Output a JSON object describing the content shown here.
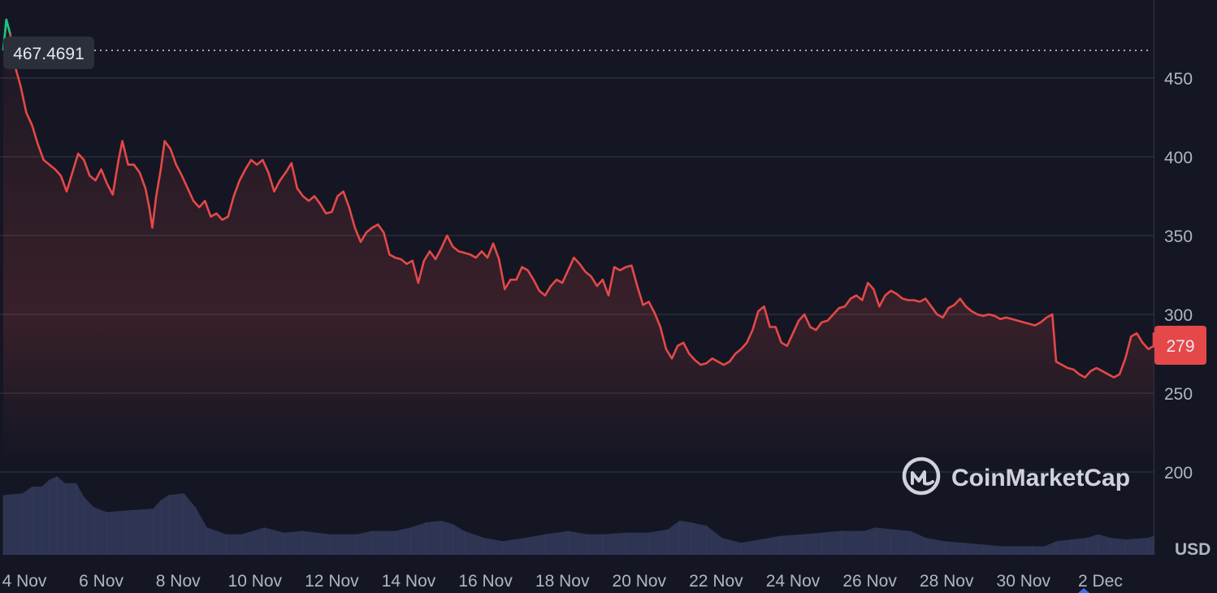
{
  "chart_data": {
    "type": "area",
    "currency": "USD",
    "brand": "CoinMarketCap",
    "open_price_label": "467.4691",
    "open_price": 467.4691,
    "last_price_label": "279",
    "last_price": 279,
    "ylim": [
      160,
      492
    ],
    "y_ticks": [
      200,
      250,
      300,
      350,
      400,
      450
    ],
    "x_ticks": [
      "4 Nov",
      "6 Nov",
      "8 Nov",
      "10 Nov",
      "12 Nov",
      "14 Nov",
      "16 Nov",
      "18 Nov",
      "20 Nov",
      "22 Nov",
      "24 Nov",
      "26 Nov",
      "28 Nov",
      "30 Nov",
      "2 Dec"
    ],
    "x_day_range": [
      0,
      30.5
    ],
    "grid": true,
    "series": [
      {
        "values": [
          [
            0.0,
            467.5
          ],
          [
            0.08,
            487
          ],
          [
            0.18,
            478
          ],
          [
            0.3,
            458
          ],
          [
            0.45,
            445
          ],
          [
            0.6,
            428
          ],
          [
            0.75,
            420
          ],
          [
            0.9,
            408
          ],
          [
            1.05,
            398
          ],
          [
            1.2,
            395
          ],
          [
            1.35,
            392
          ],
          [
            1.5,
            388
          ],
          [
            1.65,
            378
          ],
          [
            1.8,
            390
          ],
          [
            1.95,
            402
          ],
          [
            2.1,
            398
          ],
          [
            2.25,
            388
          ],
          [
            2.4,
            385
          ],
          [
            2.55,
            392
          ],
          [
            2.7,
            383
          ],
          [
            2.85,
            376
          ],
          [
            3.0,
            398
          ],
          [
            3.1,
            410
          ],
          [
            3.25,
            395
          ],
          [
            3.4,
            395
          ],
          [
            3.55,
            390
          ],
          [
            3.7,
            380
          ],
          [
            3.8,
            368
          ],
          [
            3.88,
            355
          ],
          [
            3.98,
            375
          ],
          [
            4.1,
            392
          ],
          [
            4.2,
            410
          ],
          [
            4.35,
            405
          ],
          [
            4.5,
            395
          ],
          [
            4.65,
            388
          ],
          [
            4.8,
            380
          ],
          [
            4.95,
            372
          ],
          [
            5.1,
            368
          ],
          [
            5.25,
            372
          ],
          [
            5.4,
            362
          ],
          [
            5.55,
            364
          ],
          [
            5.7,
            360
          ],
          [
            5.85,
            362
          ],
          [
            6.0,
            375
          ],
          [
            6.15,
            385
          ],
          [
            6.3,
            392
          ],
          [
            6.45,
            398
          ],
          [
            6.6,
            395
          ],
          [
            6.75,
            398
          ],
          [
            6.9,
            390
          ],
          [
            7.05,
            378
          ],
          [
            7.2,
            385
          ],
          [
            7.35,
            390
          ],
          [
            7.5,
            396
          ],
          [
            7.65,
            380
          ],
          [
            7.8,
            375
          ],
          [
            7.95,
            372
          ],
          [
            8.1,
            375
          ],
          [
            8.25,
            370
          ],
          [
            8.4,
            364
          ],
          [
            8.55,
            365
          ],
          [
            8.7,
            375
          ],
          [
            8.85,
            378
          ],
          [
            9.0,
            368
          ],
          [
            9.15,
            355
          ],
          [
            9.3,
            346
          ],
          [
            9.45,
            352
          ],
          [
            9.6,
            355
          ],
          [
            9.75,
            357
          ],
          [
            9.9,
            352
          ],
          [
            10.05,
            338
          ],
          [
            10.2,
            336
          ],
          [
            10.35,
            335
          ],
          [
            10.5,
            332
          ],
          [
            10.65,
            334
          ],
          [
            10.8,
            320
          ],
          [
            10.95,
            334
          ],
          [
            11.1,
            340
          ],
          [
            11.25,
            335
          ],
          [
            11.4,
            342
          ],
          [
            11.55,
            350
          ],
          [
            11.7,
            343
          ],
          [
            11.85,
            340
          ],
          [
            12.0,
            339
          ],
          [
            12.15,
            338
          ],
          [
            12.3,
            336
          ],
          [
            12.45,
            340
          ],
          [
            12.6,
            336
          ],
          [
            12.75,
            345
          ],
          [
            12.9,
            335
          ],
          [
            13.05,
            316
          ],
          [
            13.2,
            322
          ],
          [
            13.35,
            322
          ],
          [
            13.5,
            330
          ],
          [
            13.65,
            328
          ],
          [
            13.8,
            322
          ],
          [
            13.95,
            315
          ],
          [
            14.1,
            312
          ],
          [
            14.25,
            318
          ],
          [
            14.4,
            322
          ],
          [
            14.55,
            320
          ],
          [
            14.7,
            328
          ],
          [
            14.85,
            336
          ],
          [
            15.0,
            332
          ],
          [
            15.15,
            327
          ],
          [
            15.3,
            324
          ],
          [
            15.45,
            318
          ],
          [
            15.6,
            322
          ],
          [
            15.75,
            312
          ],
          [
            15.9,
            330
          ],
          [
            16.05,
            328
          ],
          [
            16.2,
            330
          ],
          [
            16.35,
            331
          ],
          [
            16.5,
            318
          ],
          [
            16.65,
            306
          ],
          [
            16.8,
            308
          ],
          [
            16.95,
            301
          ],
          [
            17.1,
            292
          ],
          [
            17.25,
            278
          ],
          [
            17.4,
            272
          ],
          [
            17.55,
            280
          ],
          [
            17.7,
            282
          ],
          [
            17.85,
            275
          ],
          [
            18.0,
            271
          ],
          [
            18.15,
            268
          ],
          [
            18.3,
            269
          ],
          [
            18.45,
            272
          ],
          [
            18.6,
            270
          ],
          [
            18.75,
            268
          ],
          [
            18.9,
            270
          ],
          [
            19.05,
            275
          ],
          [
            19.2,
            278
          ],
          [
            19.35,
            282
          ],
          [
            19.5,
            290
          ],
          [
            19.65,
            302
          ],
          [
            19.8,
            305
          ],
          [
            19.95,
            292
          ],
          [
            20.1,
            292
          ],
          [
            20.25,
            282
          ],
          [
            20.4,
            280
          ],
          [
            20.55,
            288
          ],
          [
            20.7,
            296
          ],
          [
            20.85,
            300
          ],
          [
            21.0,
            292
          ],
          [
            21.15,
            290
          ],
          [
            21.3,
            295
          ],
          [
            21.45,
            296
          ],
          [
            21.6,
            300
          ],
          [
            21.75,
            304
          ],
          [
            21.9,
            305
          ],
          [
            22.05,
            310
          ],
          [
            22.2,
            312
          ],
          [
            22.35,
            309
          ],
          [
            22.5,
            320
          ],
          [
            22.65,
            316
          ],
          [
            22.8,
            305
          ],
          [
            22.95,
            312
          ],
          [
            23.1,
            315
          ],
          [
            23.25,
            313
          ],
          [
            23.4,
            310
          ],
          [
            23.55,
            309
          ],
          [
            23.7,
            309
          ],
          [
            23.85,
            308
          ],
          [
            24.0,
            310
          ],
          [
            24.15,
            305
          ],
          [
            24.3,
            300
          ],
          [
            24.45,
            298
          ],
          [
            24.6,
            304
          ],
          [
            24.75,
            306
          ],
          [
            24.9,
            310
          ],
          [
            25.05,
            305
          ],
          [
            25.2,
            302
          ],
          [
            25.35,
            300
          ],
          [
            25.5,
            299
          ],
          [
            25.65,
            300
          ],
          [
            25.8,
            299
          ],
          [
            25.95,
            297
          ],
          [
            26.1,
            298
          ],
          [
            26.25,
            297
          ],
          [
            26.4,
            296
          ],
          [
            26.55,
            295
          ],
          [
            26.7,
            294
          ],
          [
            26.85,
            293
          ],
          [
            27.0,
            295
          ],
          [
            27.15,
            298
          ],
          [
            27.3,
            300
          ],
          [
            27.4,
            270
          ],
          [
            27.55,
            268
          ],
          [
            27.7,
            266
          ],
          [
            27.85,
            265
          ],
          [
            28.0,
            262
          ],
          [
            28.15,
            260
          ],
          [
            28.3,
            264
          ],
          [
            28.45,
            266
          ],
          [
            28.6,
            264
          ],
          [
            28.75,
            262
          ],
          [
            28.9,
            260
          ],
          [
            29.05,
            262
          ],
          [
            29.2,
            272
          ],
          [
            29.35,
            286
          ],
          [
            29.5,
            288
          ],
          [
            29.65,
            282
          ],
          [
            29.8,
            278
          ],
          [
            29.95,
            280
          ],
          [
            30.1,
            286
          ],
          [
            30.25,
            288
          ],
          [
            30.4,
            284
          ],
          [
            30.5,
            279
          ]
        ]
      },
      {
        "type": "area",
        "values": [
          [
            0.0,
            35
          ],
          [
            0.5,
            36
          ],
          [
            0.75,
            40
          ],
          [
            1.0,
            40
          ],
          [
            1.2,
            44
          ],
          [
            1.4,
            46
          ],
          [
            1.6,
            42
          ],
          [
            1.9,
            42
          ],
          [
            2.1,
            34
          ],
          [
            2.35,
            28
          ],
          [
            2.7,
            25
          ],
          [
            3.2,
            26
          ],
          [
            3.9,
            27
          ],
          [
            4.1,
            32
          ],
          [
            4.3,
            35
          ],
          [
            4.7,
            36
          ],
          [
            5.0,
            28
          ],
          [
            5.3,
            16
          ],
          [
            5.8,
            12
          ],
          [
            6.2,
            12
          ],
          [
            6.8,
            16
          ],
          [
            7.3,
            13
          ],
          [
            7.8,
            14
          ],
          [
            8.5,
            12
          ],
          [
            9.2,
            12
          ],
          [
            9.6,
            14
          ],
          [
            10.2,
            14
          ],
          [
            10.6,
            16
          ],
          [
            11.0,
            19
          ],
          [
            11.4,
            20
          ],
          [
            11.7,
            18
          ],
          [
            12.0,
            14
          ],
          [
            12.5,
            10
          ],
          [
            13.0,
            8
          ],
          [
            13.6,
            10
          ],
          [
            14.1,
            12
          ],
          [
            14.7,
            14
          ],
          [
            15.2,
            12
          ],
          [
            15.6,
            12
          ],
          [
            16.2,
            13
          ],
          [
            16.8,
            13
          ],
          [
            17.3,
            15
          ],
          [
            17.6,
            20
          ],
          [
            17.9,
            19
          ],
          [
            18.3,
            17
          ],
          [
            18.7,
            10
          ],
          [
            19.2,
            7
          ],
          [
            19.7,
            9
          ],
          [
            20.2,
            11
          ],
          [
            20.8,
            12
          ],
          [
            21.3,
            13
          ],
          [
            21.8,
            14
          ],
          [
            22.4,
            14
          ],
          [
            22.7,
            16
          ],
          [
            23.1,
            15
          ],
          [
            23.6,
            14
          ],
          [
            24.0,
            10
          ],
          [
            24.5,
            8
          ],
          [
            25.0,
            7
          ],
          [
            25.5,
            6
          ],
          [
            26.0,
            5
          ],
          [
            26.4,
            5
          ],
          [
            26.8,
            5
          ],
          [
            27.1,
            5
          ],
          [
            27.4,
            8
          ],
          [
            27.8,
            9
          ],
          [
            28.2,
            10
          ],
          [
            28.5,
            12
          ],
          [
            28.8,
            10
          ],
          [
            29.2,
            9
          ],
          [
            29.8,
            10
          ],
          [
            30.2,
            11
          ],
          [
            30.5,
            11
          ]
        ]
      }
    ]
  }
}
